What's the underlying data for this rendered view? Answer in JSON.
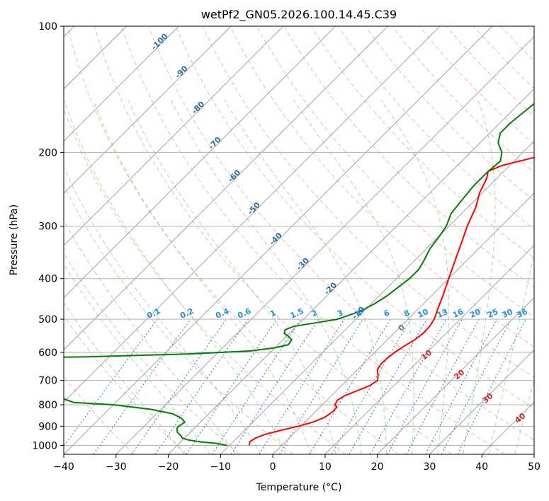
{
  "chart_data": {
    "type": "line",
    "title": "wetPf2_GN05.2026.100.14.45.C39",
    "xlabel": "Temperature (°C)",
    "ylabel": "Pressure (hPa)",
    "xlim": [
      -40,
      50
    ],
    "ylim": [
      1050,
      100
    ],
    "y_scale": "log",
    "grid": true,
    "x_ticks": [
      -40,
      -30,
      -20,
      -10,
      0,
      10,
      20,
      30,
      40,
      50
    ],
    "y_ticks": [
      100,
      200,
      300,
      400,
      500,
      600,
      700,
      800,
      900,
      1000
    ],
    "skew_deg": 45,
    "series": [
      {
        "color": "#ff0000",
        "points": [
          [
            -6.2,
            1000
          ],
          [
            -6.8,
            980
          ],
          [
            -6.4,
            960
          ],
          [
            -5.2,
            940
          ],
          [
            -3.0,
            920
          ],
          [
            -0.5,
            900
          ],
          [
            1.5,
            880
          ],
          [
            2.7,
            860
          ],
          [
            3.0,
            850
          ],
          [
            3.3,
            830
          ],
          [
            3.2,
            810
          ],
          [
            2.4,
            800
          ],
          [
            2.0,
            780
          ],
          [
            2.6,
            760
          ],
          [
            4.0,
            740
          ],
          [
            5.4,
            720
          ],
          [
            5.9,
            700
          ],
          [
            5.0,
            680
          ],
          [
            3.8,
            660
          ],
          [
            3.4,
            640
          ],
          [
            3.5,
            620
          ],
          [
            3.8,
            600
          ],
          [
            4.4,
            580
          ],
          [
            5.2,
            560
          ],
          [
            5.6,
            540
          ],
          [
            5.5,
            520
          ],
          [
            5.0,
            500
          ],
          [
            3.6,
            470
          ],
          [
            2.2,
            440
          ],
          [
            0.0,
            400
          ],
          [
            -3.0,
            350
          ],
          [
            -5.0,
            320
          ],
          [
            -6.5,
            300
          ],
          [
            -8.5,
            270
          ],
          [
            -10.5,
            250
          ],
          [
            -12.0,
            230
          ],
          [
            -13.0,
            222
          ],
          [
            -11.5,
            215
          ],
          [
            -7.5,
            207
          ],
          [
            -4.5,
            200
          ],
          [
            -2.0,
            190
          ],
          [
            0.0,
            180
          ],
          [
            1.5,
            170
          ],
          [
            2.5,
            160
          ],
          [
            3.0,
            150
          ],
          [
            4.0,
            140
          ],
          [
            6.5,
            130
          ],
          [
            9.0,
            120
          ],
          [
            12.0,
            110
          ],
          [
            15.0,
            100
          ]
        ]
      },
      {
        "color": "#008000",
        "points": [
          [
            -10.5,
            1000
          ],
          [
            -12.5,
            990
          ],
          [
            -16.5,
            980
          ],
          [
            -19.0,
            970
          ],
          [
            -20.5,
            960
          ],
          [
            -21.0,
            950
          ],
          [
            -22.5,
            930
          ],
          [
            -23.3,
            910
          ],
          [
            -23.4,
            900
          ],
          [
            -23.0,
            880
          ],
          [
            -24.5,
            860
          ],
          [
            -27.0,
            840
          ],
          [
            -32.0,
            820
          ],
          [
            -40.0,
            800
          ],
          [
            -48.0,
            790
          ],
          [
            -80.0,
            620
          ],
          [
            -55.0,
            615
          ],
          [
            -35.0,
            605
          ],
          [
            -24.0,
            595
          ],
          [
            -20.0,
            585
          ],
          [
            -18.0,
            575
          ],
          [
            -18.3,
            560
          ],
          [
            -19.5,
            550
          ],
          [
            -21.0,
            540
          ],
          [
            -21.5,
            530
          ],
          [
            -20.5,
            520
          ],
          [
            -17.0,
            510
          ],
          [
            -13.5,
            500
          ],
          [
            -10.8,
            480
          ],
          [
            -9.4,
            460
          ],
          [
            -8.5,
            440
          ],
          [
            -8.0,
            420
          ],
          [
            -7.5,
            400
          ],
          [
            -7.5,
            380
          ],
          [
            -8.3,
            360
          ],
          [
            -9.3,
            340
          ],
          [
            -9.8,
            320
          ],
          [
            -10.5,
            300
          ],
          [
            -12.0,
            280
          ],
          [
            -12.5,
            260
          ],
          [
            -13.0,
            240
          ],
          [
            -13.0,
            222
          ],
          [
            -12.6,
            210
          ],
          [
            -14.0,
            200
          ],
          [
            -16.5,
            190
          ],
          [
            -18.0,
            180
          ],
          [
            -18.0,
            170
          ],
          [
            -17.5,
            160
          ],
          [
            -17.0,
            150
          ],
          [
            -16.0,
            140
          ],
          [
            -15.0,
            130
          ],
          [
            -14.0,
            120
          ],
          [
            -13.5,
            110
          ],
          [
            -13.0,
            100
          ]
        ]
      }
    ],
    "isotherm_labels": [
      "-100",
      "-90",
      "-80",
      "-70",
      "-60",
      "-50",
      "-40",
      "-30",
      "-20",
      "-10"
    ],
    "isotherm_label_pos": [
      [
        -100,
        110
      ],
      [
        -90,
        130
      ],
      [
        -80,
        158
      ],
      [
        -70,
        192
      ],
      [
        -60,
        230
      ],
      [
        -50,
        275
      ],
      [
        -40,
        325
      ],
      [
        -30,
        373
      ],
      [
        -20,
        427
      ],
      [
        -10,
        488
      ]
    ],
    "mixing_ratio_labels": [
      "0.1",
      "0.2",
      "0.4",
      "0.6",
      "1",
      "1.5",
      "2",
      "3",
      "4",
      "6",
      "8",
      "10",
      "13",
      "16",
      "20",
      "25",
      "30",
      "36"
    ],
    "mixing_ratio_values": [
      0.1,
      0.2,
      0.4,
      0.6,
      1,
      1.5,
      2,
      3,
      4,
      6,
      8,
      10,
      13,
      16,
      20,
      25,
      30,
      36
    ],
    "moist_adiabat_labels": [
      "0",
      "10",
      "20",
      "30",
      "40"
    ],
    "moist_adiabat_label_pos": [
      [
        0,
        530
      ],
      [
        10,
        615
      ],
      [
        20,
        685
      ],
      [
        30,
        780
      ],
      [
        40,
        870
      ]
    ]
  }
}
